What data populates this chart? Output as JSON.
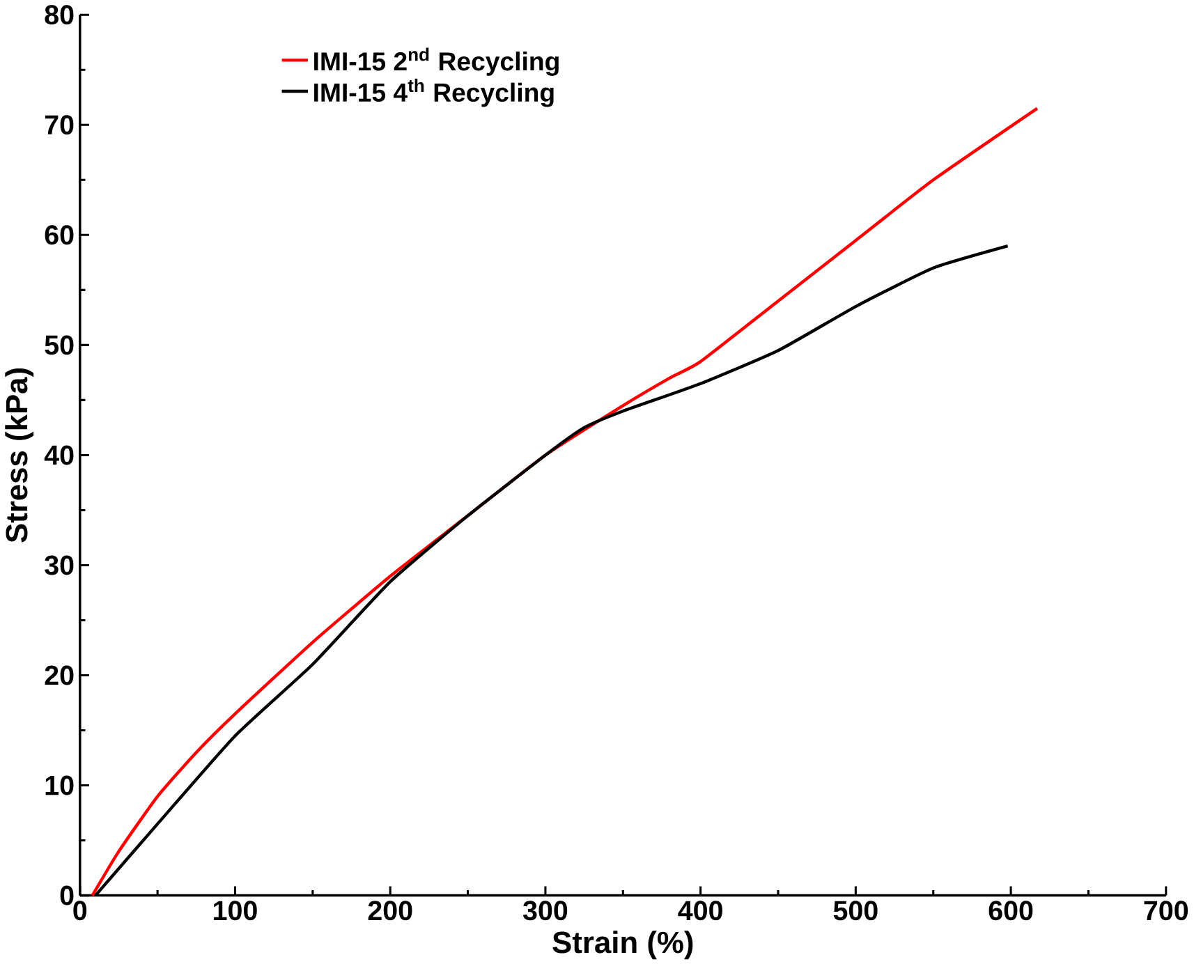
{
  "chart_data": {
    "type": "line",
    "xlabel": "Strain (%)",
    "ylabel": "Stress (kPa)",
    "xlim": [
      0,
      700
    ],
    "xticks": [
      0,
      100,
      200,
      300,
      400,
      500,
      600,
      700
    ],
    "ylim": [
      0,
      80
    ],
    "yticks": [
      0,
      10,
      20,
      30,
      40,
      50,
      60,
      70,
      80
    ],
    "grid": false,
    "legend": "top left",
    "line_style": "solid",
    "marker": "none",
    "series": [
      {
        "name": "IMI-15 2$^{nd}$ Recycling",
        "color": "#ff0000",
        "x": [
          8,
          25,
          50,
          75,
          100,
          150,
          200,
          250,
          300,
          350,
          380,
          400,
          450,
          500,
          550,
          617
        ],
        "values": [
          0,
          4,
          9,
          13,
          16.5,
          23,
          29,
          34.5,
          40,
          44.5,
          47,
          48.5,
          54,
          59.5,
          65,
          71.5
        ]
      },
      {
        "name": "IMI-15 4$^{th}$ Recycling",
        "color": "#000000",
        "x": [
          10,
          50,
          100,
          150,
          200,
          250,
          300,
          325,
          350,
          400,
          450,
          500,
          550,
          598
        ],
        "values": [
          0,
          6.5,
          14.5,
          21,
          28.5,
          34.5,
          40,
          42.5,
          44,
          46.5,
          49.5,
          53.5,
          57,
          59
        ]
      }
    ]
  }
}
